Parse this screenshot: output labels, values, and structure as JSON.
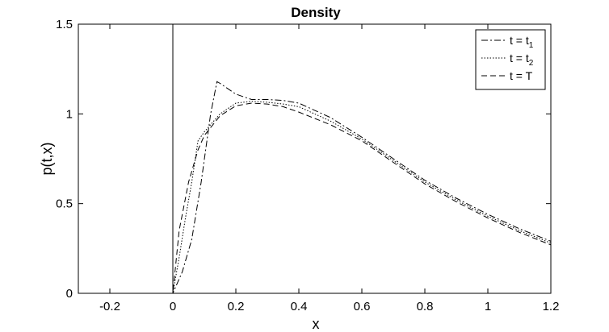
{
  "chart_data": {
    "type": "line",
    "title": "Density",
    "xlabel": "x",
    "ylabel": "p(t,x)",
    "xlim": [
      -0.3,
      1.2
    ],
    "ylim": [
      0,
      1.5
    ],
    "xticks": [
      -0.2,
      0,
      0.2,
      0.4,
      0.6,
      0.8,
      1,
      1.2
    ],
    "xtick_labels": [
      "-0.2",
      "0",
      "0.2",
      "0.4",
      "0.6",
      "0.8",
      "1",
      "1.2"
    ],
    "yticks": [
      0,
      0.5,
      1,
      1.5
    ],
    "ytick_labels": [
      "0",
      "0.5",
      "1",
      "1.5"
    ],
    "grid": false,
    "legend_position": "top-right",
    "vertical_line_at_x": 0,
    "series": [
      {
        "name": "t = t",
        "name_subscript": "1",
        "line_style": "dash-dot",
        "color": "#000000",
        "x": [
          -0.3,
          0,
          0.03,
          0.06,
          0.09,
          0.12,
          0.14,
          0.15,
          0.2,
          0.25,
          0.3,
          0.35,
          0.4,
          0.5,
          0.6,
          0.7,
          0.8,
          0.9,
          1.0,
          1.1,
          1.2
        ],
        "y": [
          0,
          0,
          0.12,
          0.3,
          0.62,
          1.0,
          1.18,
          1.17,
          1.11,
          1.08,
          1.08,
          1.075,
          1.06,
          0.98,
          0.87,
          0.75,
          0.63,
          0.53,
          0.44,
          0.36,
          0.29
        ]
      },
      {
        "name": "t = t",
        "name_subscript": "2",
        "line_style": "dotted",
        "color": "#000000",
        "x": [
          -0.3,
          0,
          0.02,
          0.04,
          0.06,
          0.08,
          0.1,
          0.15,
          0.2,
          0.25,
          0.3,
          0.35,
          0.4,
          0.5,
          0.6,
          0.7,
          0.8,
          0.9,
          1.0,
          1.1,
          1.2
        ],
        "y": [
          0,
          0,
          0.2,
          0.42,
          0.62,
          0.85,
          0.9,
          1.0,
          1.06,
          1.07,
          1.065,
          1.055,
          1.04,
          0.96,
          0.86,
          0.74,
          0.62,
          0.52,
          0.43,
          0.35,
          0.28
        ]
      },
      {
        "name": "t = T",
        "line_style": "dashed",
        "color": "#000000",
        "x": [
          -0.3,
          0,
          0.02,
          0.05,
          0.08,
          0.1,
          0.15,
          0.2,
          0.25,
          0.3,
          0.35,
          0.4,
          0.5,
          0.6,
          0.7,
          0.8,
          0.9,
          1.0,
          1.1,
          1.2
        ],
        "y": [
          0,
          0,
          0.35,
          0.62,
          0.8,
          0.88,
          0.99,
          1.045,
          1.06,
          1.055,
          1.04,
          1.01,
          0.94,
          0.85,
          0.73,
          0.61,
          0.51,
          0.42,
          0.34,
          0.27
        ]
      }
    ]
  }
}
